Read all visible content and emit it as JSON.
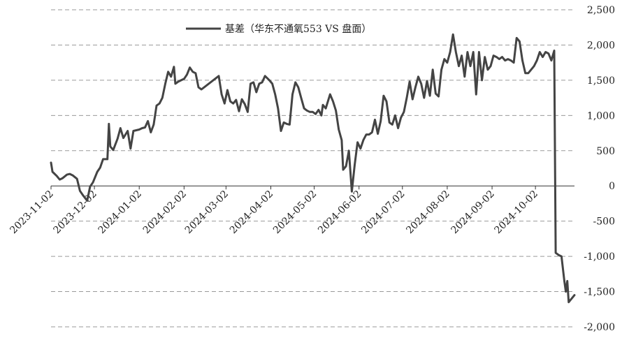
{
  "chart_data": {
    "type": "line",
    "title": "",
    "xlabel": "",
    "ylabel": "",
    "ylim": [
      -2000,
      2500
    ],
    "y_ticks": [
      2500,
      2000,
      1500,
      1000,
      500,
      0,
      -500,
      -1000,
      -1500,
      -2000
    ],
    "y_tick_labels": [
      "2,500",
      "2,000",
      "1,500",
      "1,000",
      "500",
      "0",
      "-500",
      "-1,000",
      "-1,500",
      "-2,000"
    ],
    "y_axis_position": "right",
    "grid": "horizontal-dashed",
    "legend_position": "top-center",
    "x_tick_labels": [
      "2023-11-02",
      "2023-12-02",
      "2024-01-02",
      "2024-02-02",
      "2024-03-02",
      "2024-04-02",
      "2024-05-02",
      "2024-06-02",
      "2024-07-02",
      "2024-08-02",
      "2024-09-02",
      "2024-10-02"
    ],
    "line_color": "#444444",
    "series": [
      {
        "name": "基差（华东不通氧553 VS 盘面）",
        "points": [
          [
            "2023-11-02",
            330
          ],
          [
            "2023-11-03",
            200
          ],
          [
            "2023-11-06",
            140
          ],
          [
            "2023-11-08",
            90
          ],
          [
            "2023-11-10",
            110
          ],
          [
            "2023-11-13",
            160
          ],
          [
            "2023-11-15",
            170
          ],
          [
            "2023-11-17",
            150
          ],
          [
            "2023-11-20",
            100
          ],
          [
            "2023-11-22",
            -70
          ],
          [
            "2023-11-24",
            -130
          ],
          [
            "2023-11-27",
            -210
          ],
          [
            "2023-11-29",
            -10
          ],
          [
            "2023-12-01",
            50
          ],
          [
            "2023-12-04",
            200
          ],
          [
            "2023-12-06",
            260
          ],
          [
            "2023-12-08",
            380
          ],
          [
            "2023-12-11",
            380
          ],
          [
            "2023-12-12",
            880
          ],
          [
            "2023-12-13",
            560
          ],
          [
            "2023-12-15",
            510
          ],
          [
            "2023-12-18",
            670
          ],
          [
            "2023-12-20",
            820
          ],
          [
            "2023-12-22",
            680
          ],
          [
            "2023-12-25",
            780
          ],
          [
            "2023-12-27",
            530
          ],
          [
            "2023-12-29",
            780
          ],
          [
            "2024-01-02",
            800
          ],
          [
            "2024-01-04",
            820
          ],
          [
            "2024-01-06",
            830
          ],
          [
            "2024-01-08",
            920
          ],
          [
            "2024-01-10",
            760
          ],
          [
            "2024-01-12",
            870
          ],
          [
            "2024-01-14",
            1140
          ],
          [
            "2024-01-16",
            1170
          ],
          [
            "2024-01-18",
            1250
          ],
          [
            "2024-01-20",
            1450
          ],
          [
            "2024-01-22",
            1620
          ],
          [
            "2024-01-24",
            1550
          ],
          [
            "2024-01-26",
            1690
          ],
          [
            "2024-01-27",
            1450
          ],
          [
            "2024-01-29",
            1480
          ],
          [
            "2024-01-31",
            1500
          ],
          [
            "2024-02-02",
            1520
          ],
          [
            "2024-02-04",
            1580
          ],
          [
            "2024-02-06",
            1680
          ],
          [
            "2024-02-08",
            1620
          ],
          [
            "2024-02-10",
            1600
          ],
          [
            "2024-02-12",
            1400
          ],
          [
            "2024-02-14",
            1370
          ],
          [
            "2024-02-26",
            1560
          ],
          [
            "2024-02-28",
            1300
          ],
          [
            "2024-03-01",
            1170
          ],
          [
            "2024-03-03",
            1360
          ],
          [
            "2024-03-05",
            1200
          ],
          [
            "2024-03-07",
            1170
          ],
          [
            "2024-03-09",
            1220
          ],
          [
            "2024-03-11",
            1060
          ],
          [
            "2024-03-13",
            1230
          ],
          [
            "2024-03-15",
            1160
          ],
          [
            "2024-03-17",
            1050
          ],
          [
            "2024-03-19",
            1450
          ],
          [
            "2024-03-21",
            1470
          ],
          [
            "2024-03-23",
            1330
          ],
          [
            "2024-03-25",
            1450
          ],
          [
            "2024-03-27",
            1470
          ],
          [
            "2024-03-29",
            1560
          ],
          [
            "2024-04-01",
            1500
          ],
          [
            "2024-04-03",
            1450
          ],
          [
            "2024-04-05",
            1300
          ],
          [
            "2024-04-07",
            1100
          ],
          [
            "2024-04-09",
            780
          ],
          [
            "2024-04-11",
            900
          ],
          [
            "2024-04-13",
            880
          ],
          [
            "2024-04-15",
            870
          ],
          [
            "2024-04-17",
            1300
          ],
          [
            "2024-04-19",
            1470
          ],
          [
            "2024-04-21",
            1400
          ],
          [
            "2024-04-23",
            1250
          ],
          [
            "2024-04-25",
            1100
          ],
          [
            "2024-04-27",
            1070
          ],
          [
            "2024-04-29",
            1050
          ],
          [
            "2024-05-01",
            1050
          ],
          [
            "2024-05-03",
            1020
          ],
          [
            "2024-05-05",
            1080
          ],
          [
            "2024-05-07",
            1000
          ],
          [
            "2024-05-08",
            1150
          ],
          [
            "2024-05-10",
            1100
          ],
          [
            "2024-05-13",
            1300
          ],
          [
            "2024-05-15",
            1200
          ],
          [
            "2024-05-17",
            1070
          ],
          [
            "2024-05-19",
            800
          ],
          [
            "2024-05-21",
            650
          ],
          [
            "2024-05-22",
            230
          ],
          [
            "2024-05-24",
            280
          ],
          [
            "2024-05-26",
            500
          ],
          [
            "2024-05-28",
            -80
          ],
          [
            "2024-05-30",
            300
          ],
          [
            "2024-06-01",
            620
          ],
          [
            "2024-06-03",
            530
          ],
          [
            "2024-06-05",
            650
          ],
          [
            "2024-06-07",
            730
          ],
          [
            "2024-06-09",
            730
          ],
          [
            "2024-06-11",
            760
          ],
          [
            "2024-06-13",
            940
          ],
          [
            "2024-06-15",
            740
          ],
          [
            "2024-06-17",
            920
          ],
          [
            "2024-06-19",
            1280
          ],
          [
            "2024-06-21",
            1200
          ],
          [
            "2024-06-23",
            900
          ],
          [
            "2024-06-25",
            870
          ],
          [
            "2024-06-27",
            1000
          ],
          [
            "2024-06-29",
            820
          ],
          [
            "2024-07-01",
            970
          ],
          [
            "2024-07-03",
            1050
          ],
          [
            "2024-07-05",
            1250
          ],
          [
            "2024-07-07",
            1480
          ],
          [
            "2024-07-09",
            1230
          ],
          [
            "2024-07-11",
            1400
          ],
          [
            "2024-07-13",
            1550
          ],
          [
            "2024-07-15",
            1450
          ],
          [
            "2024-07-17",
            1250
          ],
          [
            "2024-07-19",
            1490
          ],
          [
            "2024-07-21",
            1280
          ],
          [
            "2024-07-23",
            1650
          ],
          [
            "2024-07-25",
            1310
          ],
          [
            "2024-07-27",
            1270
          ],
          [
            "2024-07-29",
            1650
          ],
          [
            "2024-07-31",
            1800
          ],
          [
            "2024-08-02",
            1750
          ],
          [
            "2024-08-04",
            1900
          ],
          [
            "2024-08-06",
            2150
          ],
          [
            "2024-08-08",
            1900
          ],
          [
            "2024-08-10",
            1700
          ],
          [
            "2024-08-12",
            1850
          ],
          [
            "2024-08-14",
            1550
          ],
          [
            "2024-08-16",
            1900
          ],
          [
            "2024-08-18",
            1700
          ],
          [
            "2024-08-20",
            1900
          ],
          [
            "2024-08-22",
            1300
          ],
          [
            "2024-08-24",
            1900
          ],
          [
            "2024-08-26",
            1500
          ],
          [
            "2024-08-28",
            1830
          ],
          [
            "2024-08-30",
            1650
          ],
          [
            "2024-09-01",
            1700
          ],
          [
            "2024-09-03",
            1850
          ],
          [
            "2024-09-05",
            1830
          ],
          [
            "2024-09-07",
            1800
          ],
          [
            "2024-09-09",
            1830
          ],
          [
            "2024-09-11",
            1780
          ],
          [
            "2024-09-13",
            1800
          ],
          [
            "2024-09-15",
            1780
          ],
          [
            "2024-09-17",
            1750
          ],
          [
            "2024-09-19",
            2100
          ],
          [
            "2024-09-21",
            2050
          ],
          [
            "2024-09-23",
            1780
          ],
          [
            "2024-09-25",
            1600
          ],
          [
            "2024-09-27",
            1600
          ],
          [
            "2024-09-29",
            1650
          ],
          [
            "2024-10-01",
            1700
          ],
          [
            "2024-10-03",
            1780
          ],
          [
            "2024-10-05",
            1900
          ],
          [
            "2024-10-07",
            1830
          ],
          [
            "2024-10-09",
            1900
          ],
          [
            "2024-10-11",
            1880
          ],
          [
            "2024-10-13",
            1780
          ],
          [
            "2024-10-15",
            1920
          ],
          [
            "2024-10-16",
            -950
          ],
          [
            "2024-10-18",
            -980
          ],
          [
            "2024-10-20",
            -1000
          ],
          [
            "2024-10-22",
            -1350
          ],
          [
            "2024-10-23",
            -1500
          ],
          [
            "2024-10-24",
            -1350
          ],
          [
            "2024-10-25",
            -1650
          ],
          [
            "2024-10-27",
            -1600
          ],
          [
            "2024-10-29",
            -1550
          ]
        ]
      }
    ]
  }
}
